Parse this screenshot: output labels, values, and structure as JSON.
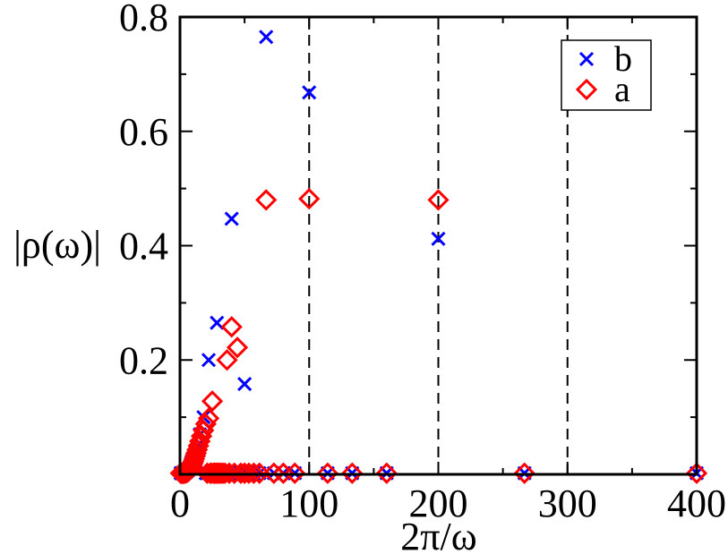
{
  "chart_data": {
    "type": "scatter",
    "xlabel": "2π/ω",
    "ylabel": "|ρ(ω)|",
    "xlim": [
      0,
      400
    ],
    "ylim": [
      0,
      0.8
    ],
    "x_ticks": [
      0,
      100,
      200,
      300,
      400
    ],
    "y_ticks": [
      0.2,
      0.4,
      0.6,
      0.8
    ],
    "x_tick_labels": [
      "0",
      "100",
      "200",
      "300",
      "400"
    ],
    "y_tick_labels": [
      "0.2",
      "0.4",
      "0.6",
      "0.8"
    ],
    "vlines": [
      100,
      200,
      300
    ],
    "legend_position": "top-right",
    "series": [
      {
        "name": "b",
        "marker": "x",
        "color": "#0000ff",
        "points": [
          [
            66.7,
            0.765
          ],
          [
            100,
            0.668
          ],
          [
            200,
            0.412
          ],
          [
            40,
            0.447
          ],
          [
            28.6,
            0.265
          ],
          [
            50,
            0.158
          ],
          [
            22.2,
            0.2
          ],
          [
            18.2,
            0.1
          ],
          [
            15.4,
            0.07
          ],
          [
            13.3,
            0.05
          ],
          [
            11.8,
            0.04
          ],
          [
            10.5,
            0.03
          ],
          [
            9.5,
            0.025
          ],
          [
            8.7,
            0.02
          ],
          [
            8,
            0.015
          ],
          [
            7.4,
            0.012
          ],
          [
            6.9,
            0.01
          ],
          [
            6.5,
            0.008
          ],
          [
            6.1,
            0.007
          ],
          [
            5.7,
            0.006
          ],
          [
            5.4,
            0.005
          ],
          [
            5.1,
            0.005
          ],
          [
            4.9,
            0.004
          ],
          [
            4.7,
            0.004
          ],
          [
            4,
            0.003
          ],
          [
            3.5,
            0.003
          ],
          [
            3,
            0.002
          ],
          [
            2.5,
            0.002
          ],
          [
            2,
            0.002
          ],
          [
            1.5,
            0.002
          ],
          [
            1,
            0.002
          ],
          [
            0.5,
            0.002
          ],
          [
            400,
            0.002
          ],
          [
            266.7,
            0.002
          ],
          [
            160,
            0.002
          ],
          [
            133.3,
            0.002
          ],
          [
            114.3,
            0.002
          ],
          [
            88.9,
            0.002
          ],
          [
            80,
            0.002
          ],
          [
            72.7,
            0.002
          ],
          [
            61.5,
            0.002
          ],
          [
            57.1,
            0.002
          ],
          [
            53.3,
            0.002
          ],
          [
            47.1,
            0.002
          ],
          [
            44.4,
            0.002
          ],
          [
            42.1,
            0.002
          ],
          [
            38.1,
            0.002
          ],
          [
            36.4,
            0.002
          ],
          [
            34.8,
            0.002
          ],
          [
            33.3,
            0.002
          ],
          [
            32,
            0.002
          ],
          [
            30.8,
            0.002
          ],
          [
            29.6,
            0.002
          ],
          [
            27.6,
            0.002
          ],
          [
            26.7,
            0.002
          ],
          [
            25.8,
            0.002
          ],
          [
            25,
            0.002
          ],
          [
            24.2,
            0.002
          ],
          [
            23.5,
            0.002
          ],
          [
            21.1,
            0.002
          ],
          [
            20,
            0.002
          ]
        ]
      },
      {
        "name": "a",
        "marker": "diamond",
        "color": "#ff0000",
        "points": [
          [
            66.7,
            0.48
          ],
          [
            100,
            0.482
          ],
          [
            200,
            0.48
          ],
          [
            40,
            0.258
          ],
          [
            44.4,
            0.222
          ],
          [
            36.4,
            0.2
          ],
          [
            25,
            0.128
          ],
          [
            22.2,
            0.098
          ],
          [
            20,
            0.088
          ],
          [
            18.2,
            0.077
          ],
          [
            16.7,
            0.067
          ],
          [
            15.4,
            0.058
          ],
          [
            14.3,
            0.05
          ],
          [
            13.3,
            0.043
          ],
          [
            12.5,
            0.037
          ],
          [
            11.8,
            0.032
          ],
          [
            11.1,
            0.027
          ],
          [
            10.5,
            0.023
          ],
          [
            10,
            0.02
          ],
          [
            9.5,
            0.017
          ],
          [
            9.1,
            0.014
          ],
          [
            8.7,
            0.012
          ],
          [
            8.3,
            0.01
          ],
          [
            8,
            0.009
          ],
          [
            7.4,
            0.007
          ],
          [
            6.9,
            0.006
          ],
          [
            6.5,
            0.005
          ],
          [
            6.1,
            0.005
          ],
          [
            5.7,
            0.004
          ],
          [
            5.4,
            0.004
          ],
          [
            5,
            0.003
          ],
          [
            4.5,
            0.003
          ],
          [
            4,
            0.003
          ],
          [
            3.5,
            0.002
          ],
          [
            3,
            0.002
          ],
          [
            2.5,
            0.002
          ],
          [
            2,
            0.002
          ],
          [
            1.5,
            0.002
          ],
          [
            1,
            0.002
          ],
          [
            0.5,
            0.002
          ],
          [
            400,
            0.002
          ],
          [
            266.7,
            0.002
          ],
          [
            160,
            0.002
          ],
          [
            133.3,
            0.002
          ],
          [
            114.3,
            0.002
          ],
          [
            88.9,
            0.002
          ],
          [
            80,
            0.002
          ],
          [
            72.7,
            0.002
          ],
          [
            61.5,
            0.002
          ],
          [
            57.1,
            0.002
          ],
          [
            53.3,
            0.002
          ],
          [
            50,
            0.002
          ],
          [
            47.1,
            0.002
          ],
          [
            42.1,
            0.002
          ],
          [
            38.1,
            0.002
          ],
          [
            34.8,
            0.002
          ],
          [
            33.3,
            0.002
          ],
          [
            32,
            0.002
          ],
          [
            30.8,
            0.002
          ],
          [
            29.6,
            0.002
          ],
          [
            28.6,
            0.002
          ],
          [
            27.6,
            0.002
          ],
          [
            26.7,
            0.002
          ],
          [
            25.8,
            0.002
          ],
          [
            24.2,
            0.002
          ],
          [
            23.5,
            0.002
          ],
          [
            21.1,
            0.002
          ]
        ]
      }
    ]
  }
}
